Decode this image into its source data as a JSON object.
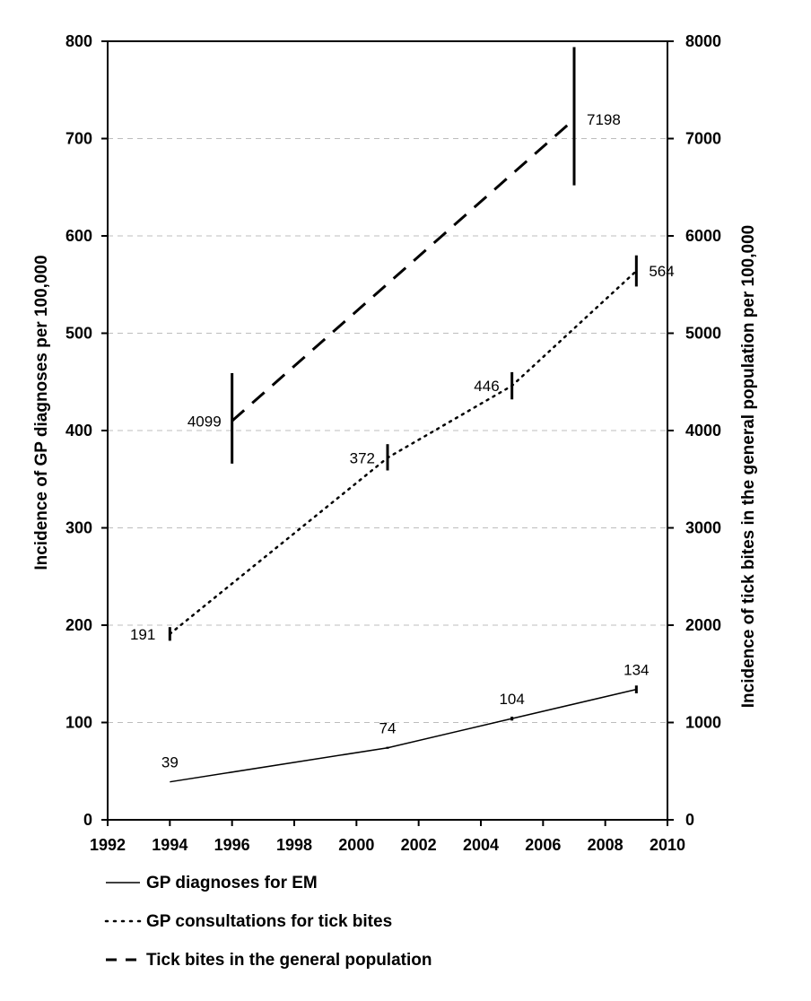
{
  "chart_data": {
    "type": "line",
    "title": "",
    "xlabel": "",
    "ylabel": "Incidence of GP diagnoses per 100,000",
    "y2label": "Incidence of tick bites in the general population per 100,000",
    "xlim": [
      1992,
      2010
    ],
    "x_ticks": [
      1992,
      1994,
      1996,
      1998,
      2000,
      2002,
      2004,
      2006,
      2008,
      2010
    ],
    "ylim": [
      0,
      800
    ],
    "y_ticks": [
      0,
      100,
      200,
      300,
      400,
      500,
      600,
      700,
      800
    ],
    "y2lim": [
      0,
      8000
    ],
    "y2_ticks": [
      0,
      1000,
      2000,
      3000,
      4000,
      5000,
      6000,
      7000,
      8000
    ],
    "grid": "horizontal dashed",
    "legend_position": "bottom",
    "series": [
      {
        "name": "GP diagnoses for EM",
        "axis": "left",
        "style": "solid",
        "points": [
          {
            "x": 1994,
            "y": 39,
            "label": "39",
            "err_low": 39,
            "err_high": 39
          },
          {
            "x": 2001,
            "y": 74,
            "label": "74",
            "err_low": 73,
            "err_high": 75
          },
          {
            "x": 2005,
            "y": 104,
            "label": "104",
            "err_low": 102,
            "err_high": 106
          },
          {
            "x": 2009,
            "y": 134,
            "label": "134",
            "err_low": 130,
            "err_high": 138
          }
        ]
      },
      {
        "name": "GP consultations for tick bites",
        "axis": "left",
        "style": "dotted",
        "points": [
          {
            "x": 1994,
            "y": 191,
            "label": "191",
            "err_low": 184,
            "err_high": 198
          },
          {
            "x": 2001,
            "y": 372,
            "label": "372",
            "err_low": 359,
            "err_high": 386
          },
          {
            "x": 2005,
            "y": 446,
            "label": "446",
            "err_low": 432,
            "err_high": 460
          },
          {
            "x": 2009,
            "y": 564,
            "label": "564",
            "err_low": 548,
            "err_high": 580
          }
        ]
      },
      {
        "name": "Tick bites in the general population",
        "axis": "right",
        "style": "dashed",
        "points": [
          {
            "x": 1996,
            "y": 4099,
            "label": "4099",
            "err_low": 3660,
            "err_high": 4590
          },
          {
            "x": 2007,
            "y": 7198,
            "label": "7198",
            "err_low": 6520,
            "err_high": 7940
          }
        ]
      }
    ]
  }
}
